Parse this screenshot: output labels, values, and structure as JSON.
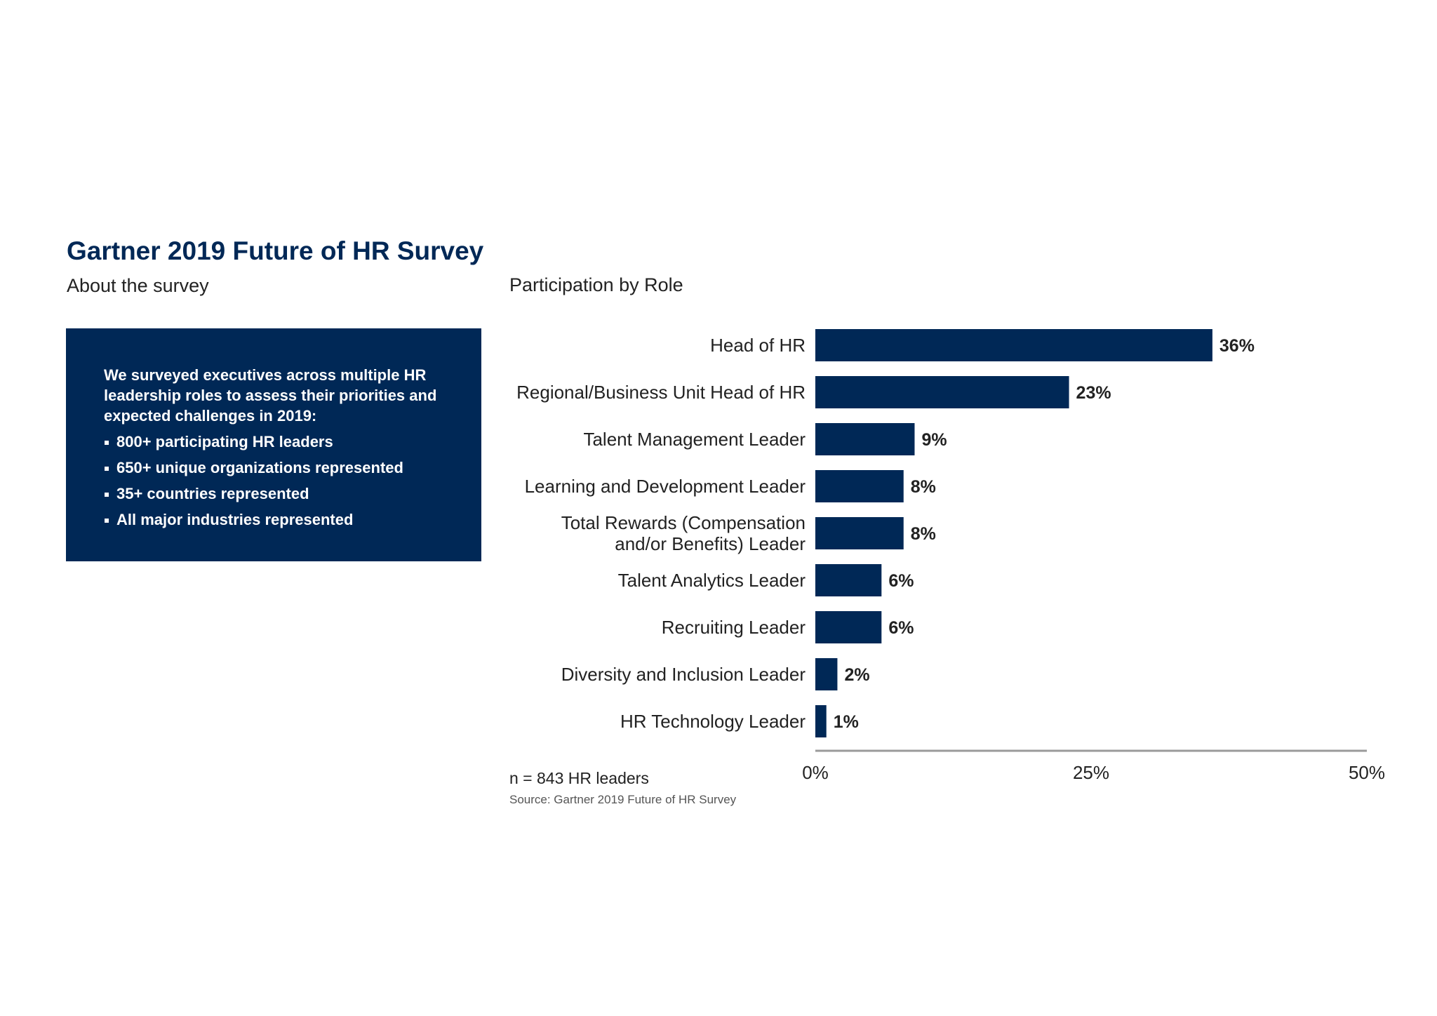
{
  "header": {
    "title": "Gartner 2019 Future of HR Survey",
    "subtitle": "About the survey"
  },
  "info_box": {
    "intro": "We surveyed executives across multiple HR leadership roles to assess their priorities and expected challenges in 2019:",
    "items": [
      "800+ participating HR leaders",
      "650+ unique organizations represented",
      "35+ countries represented",
      "All major industries represented"
    ]
  },
  "colors": {
    "brand_navy": "#002856",
    "axis_gray": "#9a9a9a"
  },
  "footer": {
    "note": "n = 843 HR leaders",
    "source": "Source: Gartner 2019 Future of HR Survey"
  },
  "chart_data": {
    "type": "bar",
    "orientation": "horizontal",
    "title": "Participation by Role",
    "categories": [
      [
        "Head of HR"
      ],
      [
        "Regional/Business Unit Head of HR"
      ],
      [
        "Talent Management Leader"
      ],
      [
        "Learning and Development Leader"
      ],
      [
        "Total Rewards (Compensation",
        "and/or Benefits) Leader"
      ],
      [
        "Talent Analytics Leader"
      ],
      [
        "Recruiting Leader"
      ],
      [
        "Diversity and Inclusion Leader"
      ],
      [
        "HR Technology Leader"
      ]
    ],
    "values": [
      36,
      23,
      9,
      8,
      8,
      6,
      6,
      2,
      1
    ],
    "value_labels": [
      "36%",
      "23%",
      "9%",
      "8%",
      "8%",
      "6%",
      "6%",
      "2%",
      "1%"
    ],
    "xlim": [
      0,
      50
    ],
    "x_ticks": [
      0,
      25,
      50
    ],
    "x_tick_labels": [
      "0%",
      "25%",
      "50%"
    ],
    "grid": false,
    "legend": "none"
  }
}
